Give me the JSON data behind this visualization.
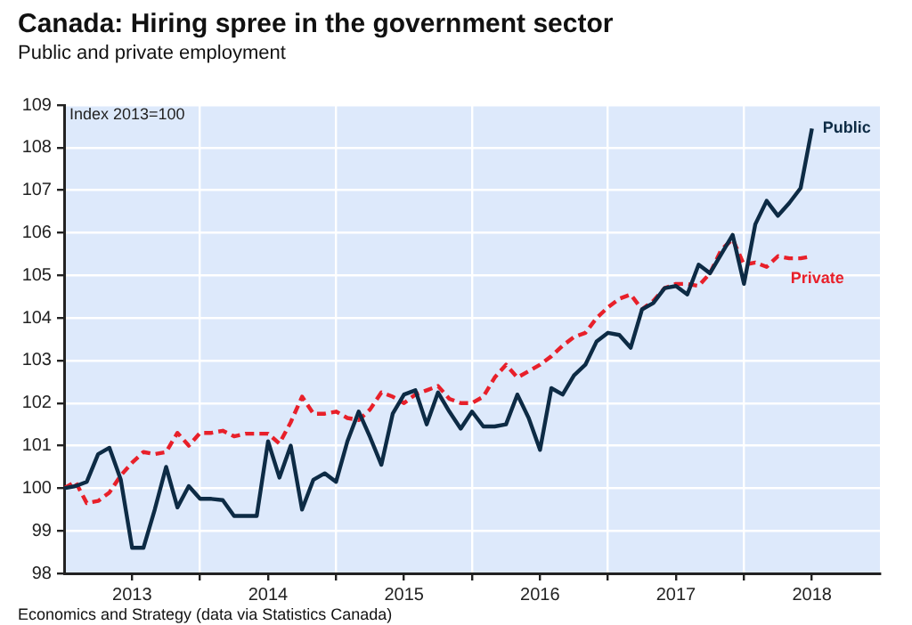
{
  "chart_data": {
    "type": "line",
    "title": "Canada: Hiring spree in the government sector",
    "subtitle": "Public and private employment",
    "ylabel": "Index 2013=100",
    "annotations": [
      "Economics and Strategy (data via Statistics Canada)"
    ],
    "x": [
      "2013-01",
      "2013-02",
      "2013-03",
      "2013-04",
      "2013-05",
      "2013-06",
      "2013-07",
      "2013-08",
      "2013-09",
      "2013-10",
      "2013-11",
      "2013-12",
      "2014-01",
      "2014-02",
      "2014-03",
      "2014-04",
      "2014-05",
      "2014-06",
      "2014-07",
      "2014-08",
      "2014-09",
      "2014-10",
      "2014-11",
      "2014-12",
      "2015-01",
      "2015-02",
      "2015-03",
      "2015-04",
      "2015-05",
      "2015-06",
      "2015-07",
      "2015-08",
      "2015-09",
      "2015-10",
      "2015-11",
      "2015-12",
      "2016-01",
      "2016-02",
      "2016-03",
      "2016-04",
      "2016-05",
      "2016-06",
      "2016-07",
      "2016-08",
      "2016-09",
      "2016-10",
      "2016-11",
      "2016-12",
      "2017-01",
      "2017-02",
      "2017-03",
      "2017-04",
      "2017-05",
      "2017-06",
      "2017-07",
      "2017-08",
      "2017-09",
      "2017-10",
      "2017-11",
      "2017-12",
      "2018-01",
      "2018-02",
      "2018-03",
      "2018-04",
      "2018-05",
      "2018-06",
      "2018-07"
    ],
    "series": [
      {
        "name": "Public",
        "color": "#0d2b45",
        "line_style": "solid",
        "values": [
          100.0,
          100.05,
          100.15,
          100.8,
          100.95,
          100.2,
          98.6,
          98.6,
          99.5,
          100.5,
          99.55,
          100.05,
          99.75,
          99.75,
          99.72,
          99.35,
          99.35,
          99.35,
          101.1,
          100.25,
          101.0,
          99.5,
          100.2,
          100.35,
          100.15,
          101.1,
          101.8,
          101.2,
          100.55,
          101.75,
          102.2,
          102.3,
          101.5,
          102.25,
          101.8,
          101.4,
          101.8,
          101.45,
          101.45,
          101.5,
          102.2,
          101.65,
          100.9,
          102.35,
          102.2,
          102.65,
          102.9,
          103.45,
          103.65,
          103.6,
          103.3,
          104.2,
          104.35,
          104.7,
          104.75,
          104.55,
          105.25,
          105.05,
          105.5,
          105.95,
          104.8,
          106.2,
          106.75,
          106.4,
          106.7,
          107.05,
          108.45
        ]
      },
      {
        "name": "Private",
        "color": "#e8202a",
        "line_style": "dashed",
        "values": [
          100.0,
          100.15,
          99.65,
          99.7,
          99.9,
          100.3,
          100.6,
          100.85,
          100.8,
          100.85,
          101.3,
          101.0,
          101.3,
          101.3,
          101.35,
          101.22,
          101.28,
          101.28,
          101.28,
          101.05,
          101.55,
          102.15,
          101.75,
          101.75,
          101.8,
          101.65,
          101.6,
          101.85,
          102.25,
          102.15,
          102.0,
          102.2,
          102.3,
          102.4,
          102.1,
          102.0,
          102.0,
          102.15,
          102.6,
          102.9,
          102.6,
          102.75,
          102.9,
          103.1,
          103.35,
          103.55,
          103.65,
          104.0,
          104.25,
          104.45,
          104.55,
          104.2,
          104.4,
          104.7,
          104.8,
          104.8,
          104.75,
          105.05,
          105.6,
          105.85,
          105.25,
          105.3,
          105.2,
          105.45,
          105.4,
          105.4,
          105.45
        ]
      }
    ],
    "xlim": [
      "2013-01",
      "2019-01"
    ],
    "xticks": [
      {
        "value": "2013-07",
        "label": "2013"
      },
      {
        "value": "2014-01",
        "label": null
      },
      {
        "value": "2014-07",
        "label": "2014"
      },
      {
        "value": "2015-01",
        "label": null
      },
      {
        "value": "2015-07",
        "label": "2015"
      },
      {
        "value": "2016-01",
        "label": null
      },
      {
        "value": "2016-07",
        "label": "2016"
      },
      {
        "value": "2017-01",
        "label": null
      },
      {
        "value": "2017-07",
        "label": "2017"
      },
      {
        "value": "2018-01",
        "label": null
      },
      {
        "value": "2018-07",
        "label": "2018"
      }
    ],
    "ylim": [
      98,
      109
    ],
    "yticks": [
      98,
      99,
      100,
      101,
      102,
      103,
      104,
      105,
      106,
      107,
      108,
      109
    ],
    "grid": true,
    "legend": false,
    "marker": "none"
  }
}
